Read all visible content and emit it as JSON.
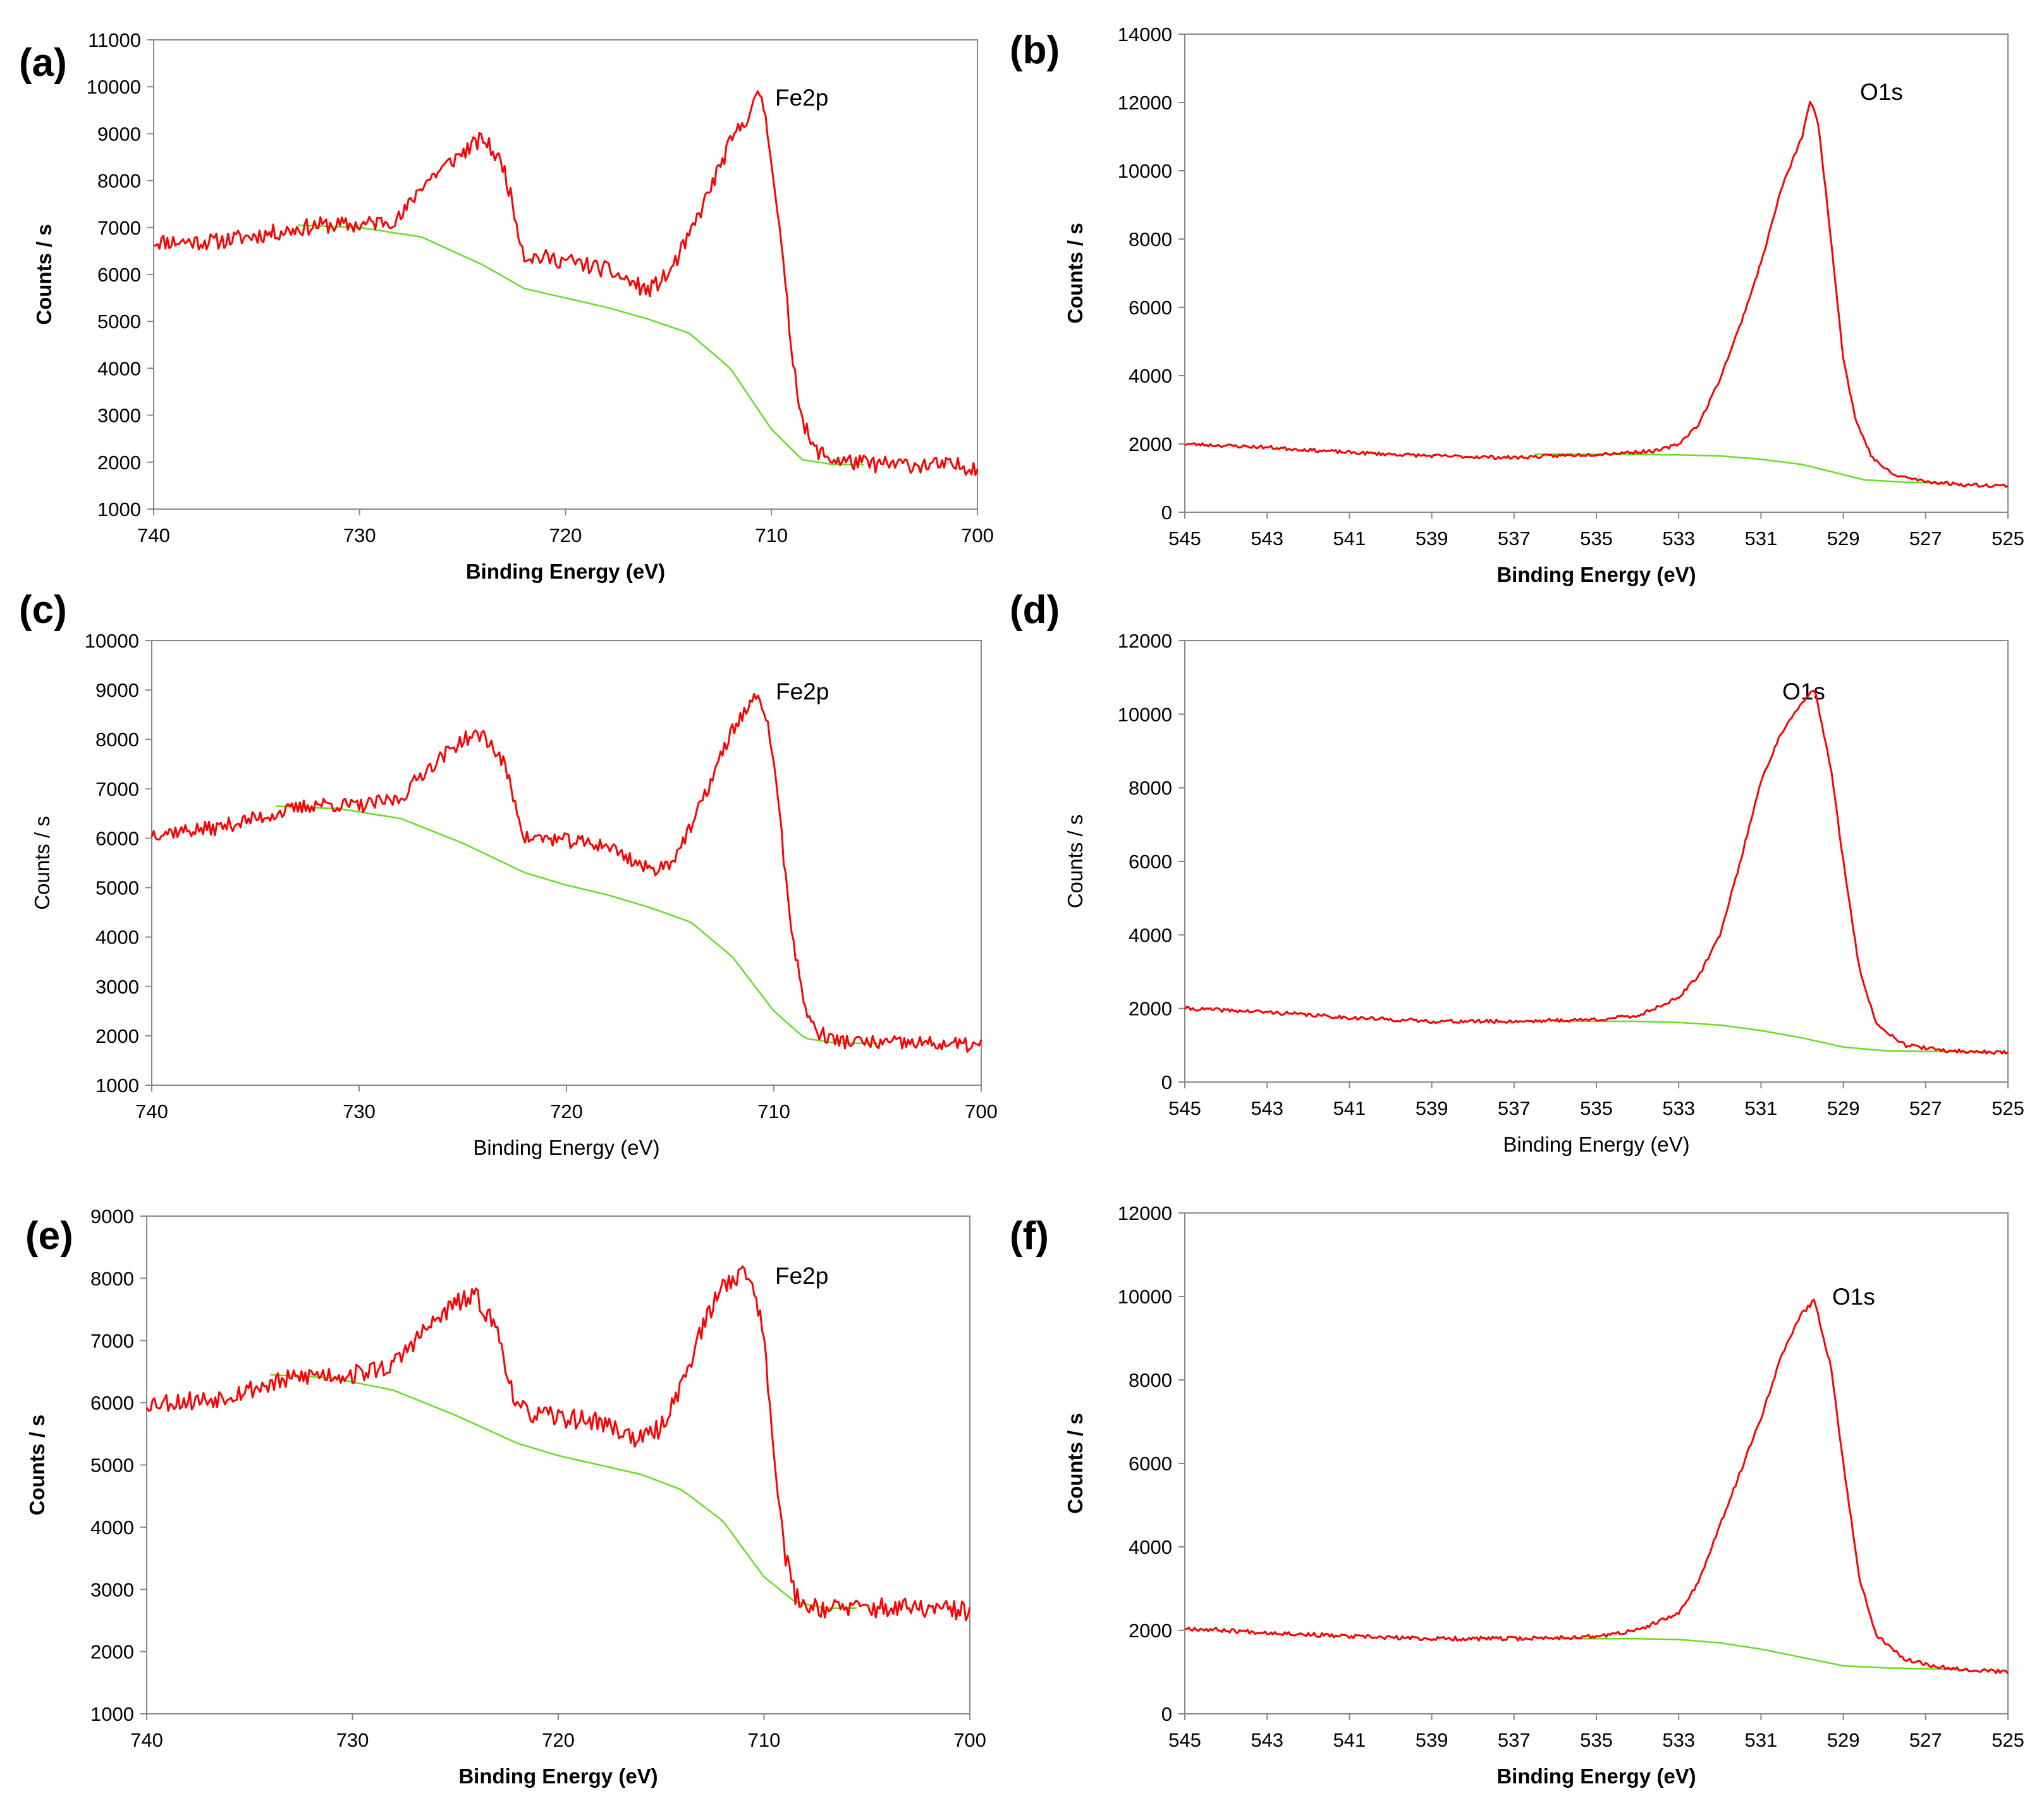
{
  "colors": {
    "spectrum": "#ff0000",
    "background_line": "#66dd22",
    "axis": "#888888"
  },
  "chart_data": [
    {
      "panel": "(a)",
      "type": "line",
      "annotation": "Fe2p",
      "xlabel": "Binding Energy (eV)",
      "ylabel": "Counts / s",
      "label_weight": "bold",
      "xlim": [
        740,
        700
      ],
      "ylim": [
        1000,
        11000
      ],
      "xticks": [
        740,
        730,
        720,
        710,
        700
      ],
      "yticks": [
        1000,
        2000,
        3000,
        4000,
        5000,
        6000,
        7000,
        8000,
        9000,
        10000,
        11000
      ],
      "series": [
        {
          "role": "spectrum",
          "noise": 180,
          "seed": 11,
          "x": [
            740,
            737,
            734,
            732,
            730,
            728,
            727,
            725,
            724,
            723,
            722,
            720,
            718,
            716,
            715,
            714,
            713,
            712,
            711,
            710.5,
            710,
            709.5,
            709,
            708.5,
            708,
            707,
            705,
            703,
            700
          ],
          "y": [
            6700,
            6700,
            6900,
            7050,
            7050,
            7200,
            7900,
            8600,
            8900,
            8300,
            6400,
            6300,
            6100,
            5650,
            6000,
            6800,
            7800,
            8800,
            9500,
            9900,
            8500,
            6500,
            4300,
            2900,
            2300,
            2050,
            1950,
            1950,
            1900
          ]
        },
        {
          "role": "background",
          "noise": 0,
          "x": [
            733,
            730,
            727,
            724,
            722,
            720,
            718,
            716,
            714,
            712,
            710,
            708.5,
            707,
            705.5
          ],
          "y": [
            7050,
            7000,
            6800,
            6200,
            5700,
            5500,
            5300,
            5050,
            4750,
            4000,
            2700,
            2050,
            1950,
            1950
          ]
        }
      ]
    },
    {
      "panel": "(b)",
      "type": "line",
      "annotation": "O1s",
      "xlabel": "Binding Energy (eV)",
      "ylabel": "Counts / s",
      "label_weight": "bold",
      "xlim": [
        545,
        525
      ],
      "ylim": [
        0,
        14000
      ],
      "xticks": [
        545,
        543,
        541,
        539,
        537,
        535,
        533,
        531,
        529,
        527,
        525
      ],
      "yticks": [
        0,
        2000,
        4000,
        6000,
        8000,
        10000,
        12000,
        14000
      ],
      "series": [
        {
          "role": "spectrum",
          "noise": 50,
          "seed": 23,
          "x": [
            545,
            543,
            541,
            539,
            537,
            535,
            533.5,
            533,
            532.5,
            532,
            531.5,
            531,
            530.5,
            530,
            529.8,
            529.6,
            529.3,
            529,
            528.7,
            528.3,
            527.8,
            527,
            526,
            525
          ],
          "y": [
            2000,
            1900,
            1750,
            1650,
            1600,
            1700,
            1800,
            2000,
            2600,
            3900,
            5500,
            7300,
            9500,
            11000,
            12100,
            11300,
            8000,
            4500,
            2700,
            1600,
            1100,
            900,
            800,
            780
          ]
        },
        {
          "role": "background",
          "noise": 0,
          "x": [
            536.5,
            535,
            533,
            532,
            531,
            530,
            529.5,
            529,
            528.5,
            527.5,
            526.5
          ],
          "y": [
            1700,
            1700,
            1680,
            1650,
            1550,
            1400,
            1250,
            1100,
            950,
            880,
            850
          ]
        }
      ]
    },
    {
      "panel": "(c)",
      "type": "line",
      "annotation": "Fe2p",
      "xlabel": "Binding Energy (eV)",
      "ylabel": "Counts / s",
      "label_weight": "normal",
      "xlim": [
        740,
        700
      ],
      "ylim": [
        1000,
        10000
      ],
      "xticks": [
        740,
        730,
        720,
        710,
        700
      ],
      "yticks": [
        1000,
        2000,
        3000,
        4000,
        5000,
        6000,
        7000,
        8000,
        9000,
        10000
      ],
      "series": [
        {
          "role": "spectrum",
          "noise": 150,
          "seed": 37,
          "x": [
            740,
            737,
            734,
            732,
            730,
            728,
            727,
            725,
            724,
            723,
            722,
            721,
            718,
            716,
            715,
            714,
            713,
            712,
            711,
            710.5,
            710,
            709.5,
            709,
            708.5,
            708,
            707,
            705,
            703,
            700
          ],
          "y": [
            6100,
            6200,
            6500,
            6700,
            6650,
            6800,
            7300,
            8000,
            8100,
            7500,
            6000,
            6000,
            5850,
            5350,
            5500,
            6200,
            7200,
            8200,
            8800,
            8700,
            7600,
            5500,
            3700,
            2600,
            2100,
            1900,
            1850,
            1850,
            1800
          ]
        },
        {
          "role": "background",
          "noise": 0,
          "x": [
            734,
            731,
            728,
            725,
            722,
            720,
            718,
            716,
            714,
            712,
            710,
            708.5,
            707,
            705
          ],
          "y": [
            6650,
            6600,
            6400,
            5900,
            5300,
            5050,
            4850,
            4600,
            4300,
            3600,
            2500,
            1950,
            1850,
            1850
          ]
        }
      ]
    },
    {
      "panel": "(d)",
      "type": "line",
      "annotation": "O1s",
      "xlabel": "Binding Energy (eV)",
      "ylabel": "Counts / s",
      "label_weight": "normal",
      "xlim": [
        545,
        525
      ],
      "ylim": [
        0,
        12000
      ],
      "xticks": [
        545,
        543,
        541,
        539,
        537,
        535,
        533,
        531,
        529,
        527,
        525
      ],
      "yticks": [
        0,
        2000,
        4000,
        6000,
        8000,
        10000,
        12000
      ],
      "series": [
        {
          "role": "spectrum",
          "noise": 50,
          "seed": 41,
          "x": [
            545,
            543,
            541,
            539,
            537,
            535,
            534,
            533,
            532.5,
            532,
            531.5,
            531,
            530.5,
            530,
            529.7,
            529.3,
            529,
            528.6,
            528.2,
            527.5,
            526.5,
            525
          ],
          "y": [
            2000,
            1900,
            1750,
            1650,
            1650,
            1700,
            1800,
            2300,
            2900,
            4000,
            6000,
            8200,
            9500,
            10300,
            10700,
            8500,
            6000,
            3000,
            1600,
            1000,
            850,
            800
          ]
        },
        {
          "role": "background",
          "noise": 0,
          "x": [
            536,
            534,
            533,
            532,
            531,
            530,
            529,
            528,
            527,
            525.5
          ],
          "y": [
            1650,
            1650,
            1620,
            1550,
            1400,
            1200,
            950,
            850,
            830,
            820
          ]
        }
      ]
    },
    {
      "panel": "(e)",
      "type": "line",
      "annotation": "Fe2p",
      "xlabel": "Binding Energy (eV)",
      "ylabel": "Counts / s",
      "label_weight": "bold",
      "xlim": [
        740,
        700
      ],
      "ylim": [
        1000,
        9000
      ],
      "xticks": [
        740,
        730,
        720,
        710,
        700
      ],
      "yticks": [
        1000,
        2000,
        3000,
        4000,
        5000,
        6000,
        7000,
        8000,
        9000
      ],
      "series": [
        {
          "role": "spectrum",
          "noise": 160,
          "seed": 53,
          "x": [
            740,
            737,
            734,
            732,
            730,
            728,
            727,
            725,
            724,
            723,
            722,
            721,
            718,
            716,
            715,
            714,
            713,
            712,
            711,
            710.5,
            710,
            709.5,
            709,
            708.5,
            708,
            707,
            705,
            703,
            700
          ],
          "y": [
            6000,
            6050,
            6300,
            6450,
            6450,
            6600,
            7000,
            7600,
            7700,
            7200,
            5900,
            5800,
            5700,
            5400,
            5600,
            6300,
            7200,
            7900,
            8100,
            7900,
            7000,
            5200,
            3600,
            2900,
            2750,
            2700,
            2700,
            2700,
            2650
          ]
        },
        {
          "role": "background",
          "noise": 0,
          "x": [
            734,
            731,
            728,
            725,
            722,
            720,
            718,
            716,
            714,
            712,
            710,
            708.5,
            707,
            705.5
          ],
          "y": [
            6450,
            6400,
            6200,
            5800,
            5350,
            5150,
            5000,
            4850,
            4600,
            4100,
            3200,
            2800,
            2700,
            2700
          ]
        }
      ]
    },
    {
      "panel": "(f)",
      "type": "line",
      "annotation": "O1s",
      "xlabel": "Binding Energy (eV)",
      "ylabel": "Counts / s",
      "label_weight": "bold",
      "xlim": [
        545,
        525
      ],
      "ylim": [
        0,
        12000
      ],
      "xticks": [
        545,
        543,
        541,
        539,
        537,
        535,
        533,
        531,
        529,
        527,
        525
      ],
      "yticks": [
        0,
        2000,
        4000,
        6000,
        8000,
        10000,
        12000
      ],
      "series": [
        {
          "role": "spectrum",
          "noise": 50,
          "seed": 67,
          "x": [
            545,
            543,
            541,
            539,
            537,
            535,
            534,
            533,
            532.5,
            532,
            531.5,
            531,
            530.5,
            530,
            529.7,
            529.3,
            529,
            528.6,
            528.2,
            527.5,
            526.5,
            525
          ],
          "y": [
            2050,
            1950,
            1850,
            1800,
            1800,
            1850,
            2000,
            2400,
            3200,
            4500,
            5800,
            7100,
            8600,
            9600,
            9900,
            8300,
            6000,
            3200,
            1900,
            1300,
            1100,
            1000
          ]
        },
        {
          "role": "background",
          "noise": 0,
          "x": [
            536,
            534,
            533,
            532,
            531,
            530,
            529,
            528,
            527,
            526
          ],
          "y": [
            1800,
            1800,
            1780,
            1700,
            1550,
            1350,
            1150,
            1100,
            1080,
            1050
          ]
        }
      ]
    }
  ]
}
